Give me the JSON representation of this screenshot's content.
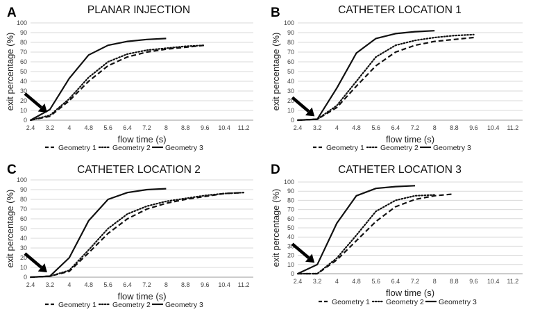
{
  "chart_data": [
    {
      "type": "line",
      "panel_label": "A",
      "title": "PLANAR INJECTION",
      "xlabel": "flow time (s)",
      "ylabel": "exit percentage (%)",
      "x_ticks": [
        "2.4",
        "3.2",
        "4",
        "4.8",
        "5.6",
        "6.4",
        "7.2",
        "8",
        "8.8",
        "9.6",
        "10.4",
        "11.2"
      ],
      "y_ticks": [
        "0",
        "10",
        "20",
        "30",
        "40",
        "50",
        "60",
        "70",
        "80",
        "90",
        "100"
      ],
      "xlim": [
        2.4,
        11.2
      ],
      "ylim": [
        0,
        100
      ],
      "grid": true,
      "legend_position": "bottom",
      "series": [
        {
          "name": "Geometry 1",
          "style": "dashed",
          "x": [
            2.4,
            3.2,
            4,
            4.8,
            5.6,
            6.4,
            7.2,
            8,
            8.8,
            9.6
          ],
          "y": [
            0,
            4,
            20,
            40,
            56,
            65,
            70,
            73,
            75,
            77
          ]
        },
        {
          "name": "Geometry 2",
          "style": "dotted",
          "x": [
            2.4,
            3.2,
            4,
            4.8,
            5.6,
            6.4,
            7.2,
            8,
            8.8,
            9.6
          ],
          "y": [
            0,
            5,
            22,
            44,
            60,
            68,
            72,
            74,
            76,
            77
          ]
        },
        {
          "name": "Geometry 3",
          "style": "solid",
          "x": [
            2.4,
            3.2,
            4,
            4.8,
            5.6,
            6.4,
            7.2,
            8
          ],
          "y": [
            0,
            11,
            43,
            67,
            77,
            81,
            83,
            84
          ]
        }
      ],
      "arrow": {
        "x": 3.2,
        "y": 8
      }
    },
    {
      "type": "line",
      "panel_label": "B",
      "title": "CATHETER LOCATION 1",
      "xlabel": "flow time (s)",
      "ylabel": "exit percentage (%)",
      "x_ticks": [
        "2.4",
        "3.2",
        "4",
        "4.8",
        "5.6",
        "6.4",
        "7.2",
        "8",
        "8.8",
        "9.6",
        "10.4",
        "11.2"
      ],
      "y_ticks": [
        "0",
        "10",
        "20",
        "30",
        "40",
        "50",
        "60",
        "70",
        "80",
        "90",
        "100"
      ],
      "xlim": [
        2.4,
        11.2
      ],
      "ylim": [
        0,
        100
      ],
      "grid": true,
      "legend_position": "bottom",
      "series": [
        {
          "name": "Geometry 1",
          "style": "dashed",
          "x": [
            2.4,
            3.2,
            4,
            4.8,
            5.6,
            6.4,
            7.2,
            8,
            8.8,
            9.6
          ],
          "y": [
            0,
            1,
            13,
            35,
            56,
            70,
            77,
            81,
            83,
            85
          ]
        },
        {
          "name": "Geometry 2",
          "style": "dotted",
          "x": [
            2.4,
            3.2,
            4,
            4.8,
            5.6,
            6.4,
            7.2,
            8,
            8.8,
            9.6
          ],
          "y": [
            0,
            1,
            15,
            40,
            65,
            77,
            82,
            85,
            87,
            88
          ]
        },
        {
          "name": "Geometry 3",
          "style": "solid",
          "x": [
            2.4,
            3.2,
            4,
            4.8,
            5.6,
            6.4,
            7.2,
            8
          ],
          "y": [
            0,
            1,
            33,
            69,
            84,
            89,
            91,
            92
          ]
        }
      ],
      "arrow": {
        "x": 3.2,
        "y": 4
      }
    },
    {
      "type": "line",
      "panel_label": "C",
      "title": "CATHETER LOCATION 2",
      "xlabel": "flow time (s)",
      "ylabel": "exit percentage (%)",
      "x_ticks": [
        "2.4",
        "3.2",
        "4",
        "4.8",
        "5.6",
        "6.4",
        "7.2",
        "8",
        "8.8",
        "9.6",
        "10.4",
        "11.2"
      ],
      "y_ticks": [
        "0",
        "10",
        "20",
        "30",
        "40",
        "50",
        "60",
        "70",
        "80",
        "90",
        "100"
      ],
      "xlim": [
        2.4,
        11.2
      ],
      "ylim": [
        0,
        100
      ],
      "grid": true,
      "legend_position": "bottom",
      "series": [
        {
          "name": "Geometry 1",
          "style": "dashed",
          "x": [
            2.4,
            3.2,
            4,
            4.8,
            5.6,
            6.4,
            7.2,
            8,
            8.8,
            9.6,
            10.4,
            11.2
          ],
          "y": [
            0,
            1,
            6,
            25,
            45,
            60,
            70,
            76,
            80,
            83,
            86,
            87
          ]
        },
        {
          "name": "Geometry 2",
          "style": "dotted",
          "x": [
            2.4,
            3.2,
            4,
            4.8,
            5.6,
            6.4,
            7.2,
            8,
            8.8,
            9.6,
            10.4,
            11.2
          ],
          "y": [
            0,
            1,
            7,
            28,
            50,
            65,
            73,
            78,
            81,
            84,
            86,
            87
          ]
        },
        {
          "name": "Geometry 3",
          "style": "solid",
          "x": [
            2.4,
            3.2,
            4,
            4.8,
            5.6,
            6.4,
            7.2,
            8
          ],
          "y": [
            0,
            1,
            20,
            58,
            80,
            87,
            90,
            91
          ]
        }
      ],
      "arrow": {
        "x": 3.2,
        "y": 5
      }
    },
    {
      "type": "line",
      "panel_label": "D",
      "title": "CATHETER LOCATION 3",
      "xlabel": "flow time (s)",
      "ylabel": "exit percentage (%)",
      "x_ticks": [
        "2.4",
        "3.2",
        "4",
        "4.8",
        "5.6",
        "6.4",
        "7.2",
        "8",
        "8.8",
        "9.6",
        "10.4",
        "11.2"
      ],
      "y_ticks": [
        "0",
        "10",
        "20",
        "30",
        "40",
        "50",
        "60",
        "70",
        "80",
        "90",
        "100"
      ],
      "xlim": [
        2.4,
        11.2
      ],
      "ylim": [
        0,
        100
      ],
      "grid": true,
      "legend_position": "bottom",
      "series": [
        {
          "name": "Geometry 1",
          "style": "dashed",
          "x": [
            2.4,
            3.2,
            4,
            4.8,
            5.6,
            6.4,
            7.2,
            8,
            8.8
          ],
          "y": [
            0,
            0,
            15,
            36,
            57,
            73,
            81,
            85,
            87
          ]
        },
        {
          "name": "Geometry 2",
          "style": "dotted",
          "x": [
            2.4,
            3.2,
            4,
            4.8,
            5.6,
            6.4,
            7.2,
            8
          ],
          "y": [
            0,
            0,
            17,
            42,
            68,
            80,
            85,
            86
          ]
        },
        {
          "name": "Geometry 3",
          "style": "solid",
          "x": [
            2.4,
            3.2,
            4,
            4.8,
            5.6,
            6.4,
            7.2
          ],
          "y": [
            0,
            10,
            55,
            85,
            93,
            95,
            96
          ]
        }
      ],
      "arrow": {
        "x": 3.2,
        "y": 12
      }
    }
  ]
}
